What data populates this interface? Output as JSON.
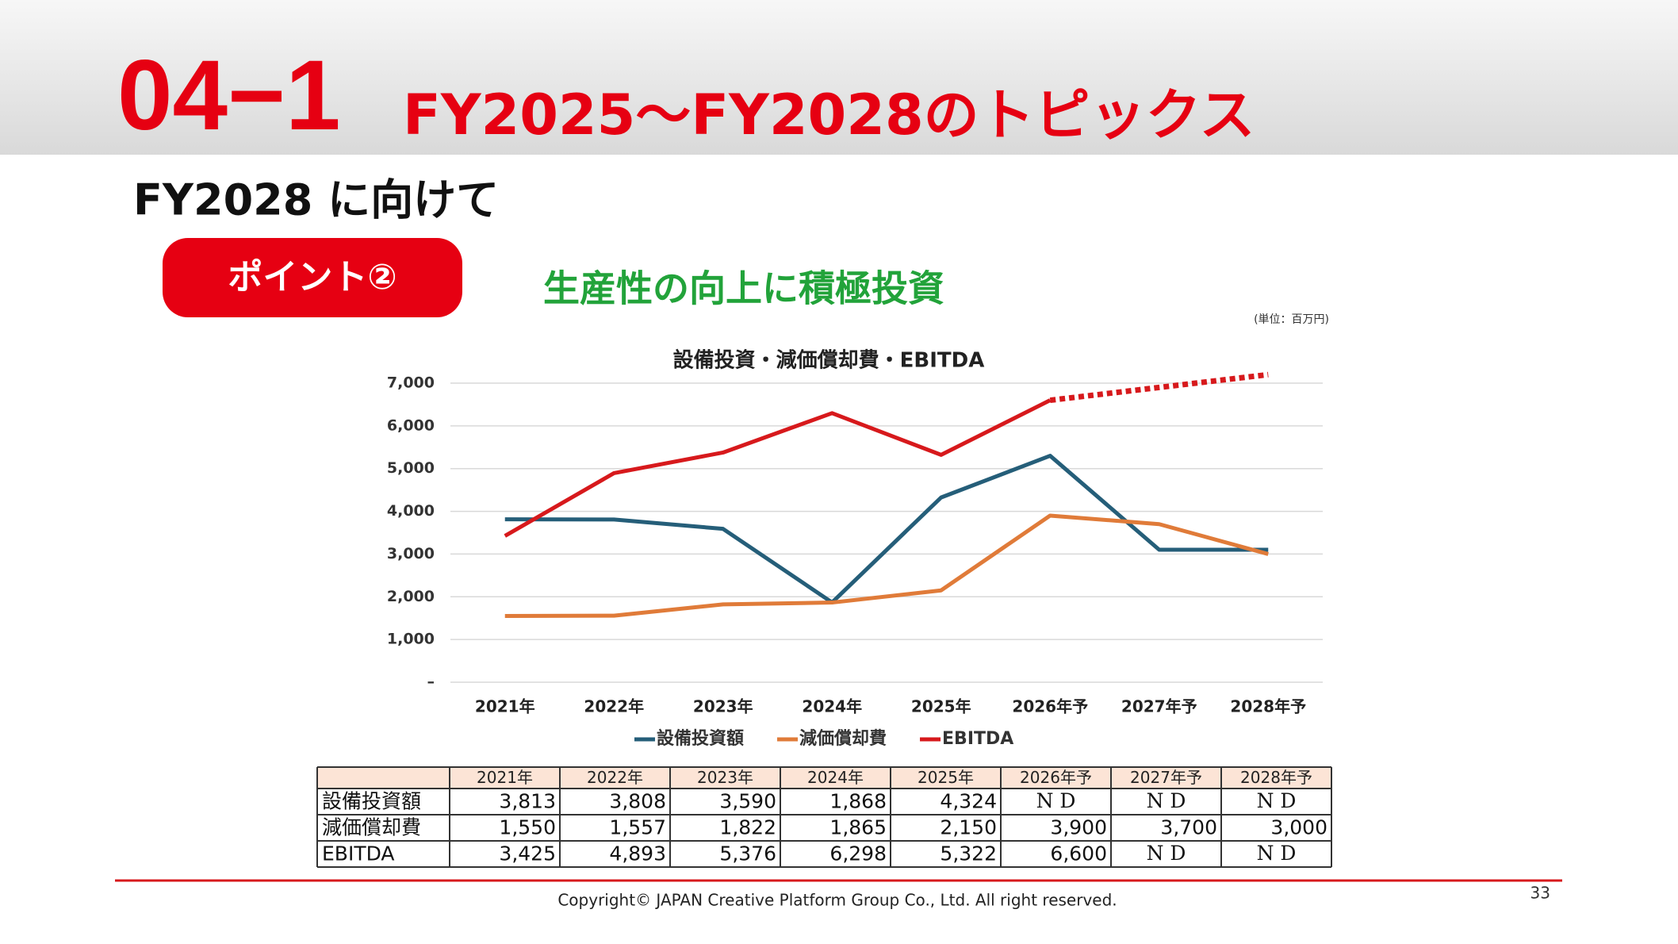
{
  "header": {
    "section": "04−1",
    "title": "FY2025～FY2028のトピックス"
  },
  "subtitle": "FY2028 に向けて",
  "badge": "ポイント②",
  "headline": "生産性の向上に積極投資",
  "unit": "(単位：百万円)",
  "chart_data": {
    "type": "line",
    "title": "設備投資・減価償却費・EBITDA",
    "categories": [
      "2021年",
      "2022年",
      "2023年",
      "2024年",
      "2025年",
      "2026年予",
      "2027年予",
      "2028年予"
    ],
    "series": [
      {
        "name": "設備投資額",
        "color": "#255e79",
        "values": [
          3813,
          3808,
          3590,
          1868,
          4324,
          5300,
          3100,
          3100
        ]
      },
      {
        "name": "減価償却費",
        "color": "#e07b39",
        "values": [
          1550,
          1557,
          1822,
          1865,
          2150,
          3900,
          3700,
          3000
        ]
      },
      {
        "name": "EBITDA",
        "color": "#d7191c",
        "values": [
          3425,
          4893,
          5376,
          6298,
          5322,
          6600,
          null,
          null
        ]
      },
      {
        "color": "#d7191c",
        "dashed": true,
        "values": [
          null,
          null,
          null,
          null,
          null,
          6600,
          6900,
          7200
        ]
      }
    ],
    "ylim": [
      0,
      7000
    ],
    "yticks": [
      {
        "value": 0,
        "label": "–"
      },
      {
        "value": 1000,
        "label": "1,000"
      },
      {
        "value": 2000,
        "label": "2,000"
      },
      {
        "value": 3000,
        "label": "3,000"
      },
      {
        "value": 4000,
        "label": "4,000"
      },
      {
        "value": 5000,
        "label": "5,000"
      },
      {
        "value": 6000,
        "label": "6,000"
      },
      {
        "value": 7000,
        "label": "7,000"
      }
    ],
    "grid": true,
    "legend": "bottom"
  },
  "table": {
    "columns": [
      "2021年",
      "2022年",
      "2023年",
      "2024年",
      "2025年",
      "2026年予",
      "2027年予",
      "2028年予"
    ],
    "rows": [
      {
        "label": "設備投資額",
        "cells": [
          "3,813",
          "3,808",
          "3,590",
          "1,868",
          "4,324",
          "N D",
          "N D",
          "N D"
        ]
      },
      {
        "label": "減価償却費",
        "cells": [
          "1,550",
          "1,557",
          "1,822",
          "1,865",
          "2,150",
          "3,900",
          "3,700",
          "3,000"
        ]
      },
      {
        "label": "EBITDA",
        "cells": [
          "3,425",
          "4,893",
          "5,376",
          "6,298",
          "5,322",
          "6,600",
          "N D",
          "N D"
        ]
      }
    ]
  },
  "footer": {
    "copyright": "Copyright© JAPAN Creative Platform Group Co., Ltd. All right reserved.",
    "page": 33
  }
}
